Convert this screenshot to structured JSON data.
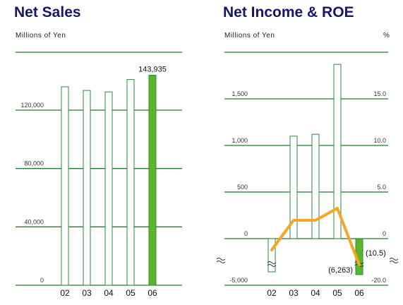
{
  "colors": {
    "grid": "#1e7a2e",
    "bar_outline": "#2b8a3e",
    "highlight": "#5cb52a",
    "roe_line": "#f5a623",
    "title": "#16166e"
  },
  "chart_data": [
    {
      "type": "bar",
      "title": "Net Sales",
      "ylabel": "Millions of Yen",
      "categories": [
        "02",
        "03",
        "04",
        "05",
        "06"
      ],
      "values": [
        136000,
        133500,
        132500,
        141000,
        143935
      ],
      "highlight_index": 4,
      "data_labels": [
        {
          "index": 4,
          "text": "143,935"
        }
      ],
      "yticks": [
        "0",
        "40,000",
        "80,000",
        "120,000"
      ],
      "ylim": [
        0,
        160000
      ],
      "grid": true
    },
    {
      "type": "bar",
      "title": "Net Income & ROE",
      "ylabel": "Millions of Yen",
      "y2label": "%",
      "categories": [
        "02",
        "03",
        "04",
        "05",
        "06"
      ],
      "series": [
        {
          "values": [
            -5000,
            1100,
            1120,
            1870,
            -6263
          ],
          "type": "bar"
        },
        {
          "values": [
            -2.5,
            1.5,
            1.5,
            3.0,
            -10.5
          ],
          "type": "line",
          "axis": "right"
        }
      ],
      "highlight_index": 4,
      "data_labels": [
        {
          "index": 4,
          "text": "(6,263)"
        },
        {
          "index": 4,
          "text": "(10.5)"
        }
      ],
      "yticks": [
        "-5,000",
        "0",
        "500",
        "1,000",
        "1,500"
      ],
      "y2ticks": [
        "-20.0",
        "0",
        "5.0",
        "10.0",
        "15.0"
      ],
      "ylim": [
        0,
        2000
      ],
      "y2lim": [
        0,
        20
      ],
      "axis_break": true,
      "grid": true
    }
  ]
}
